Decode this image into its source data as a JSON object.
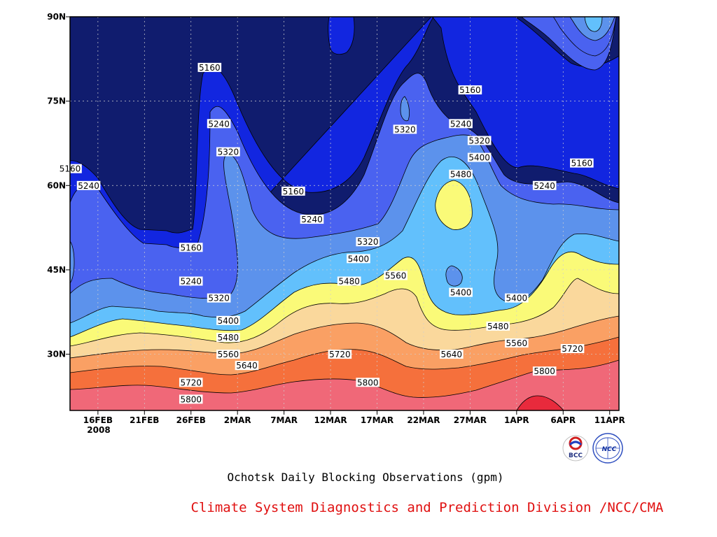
{
  "chart_data": {
    "type": "contour",
    "title": "Ochotsk Daily Blocking Observations (gpm)",
    "x_tick_labels": [
      "16FEB",
      "21FEB",
      "26FEB",
      "2MAR",
      "7MAR",
      "12MAR",
      "17MAR",
      "22MAR",
      "27MAR",
      "1APR",
      "6APR",
      "11APR"
    ],
    "x_sub_label": "2008",
    "x_range": [
      "2008-02-13",
      "2008-04-12"
    ],
    "y_tick_labels": [
      "30N",
      "45N",
      "60N",
      "75N",
      "90N"
    ],
    "y_tick_values": [
      30,
      45,
      60,
      75,
      90
    ],
    "y_range": [
      20,
      90
    ],
    "contour_levels": [
      5160,
      5240,
      5320,
      5400,
      5480,
      5560,
      5640,
      5720,
      5800
    ],
    "band_colors": [
      "#101c6e",
      "#1226e0",
      "#4a62f0",
      "#5c92ec",
      "#62c0fc",
      "#fafa78",
      "#fad89c",
      "#faa064",
      "#f5703c",
      "#f06878",
      "#e82a3c"
    ],
    "grid": true,
    "labels": [
      {
        "value": "5160",
        "date": "2008-02-13",
        "lat": 63
      },
      {
        "value": "5240",
        "date": "2008-02-15",
        "lat": 60
      },
      {
        "value": "5160",
        "date": "2008-02-28",
        "lat": 81
      },
      {
        "value": "5240",
        "date": "2008-02-29",
        "lat": 71
      },
      {
        "value": "5320",
        "date": "2008-03-01",
        "lat": 66
      },
      {
        "value": "5160",
        "date": "2008-02-26",
        "lat": 49
      },
      {
        "value": "5240",
        "date": "2008-02-26",
        "lat": 43
      },
      {
        "value": "5320",
        "date": "2008-02-29",
        "lat": 40
      },
      {
        "value": "5400",
        "date": "2008-03-01",
        "lat": 36
      },
      {
        "value": "5480",
        "date": "2008-03-01",
        "lat": 33
      },
      {
        "value": "5560",
        "date": "2008-03-01",
        "lat": 30
      },
      {
        "value": "5640",
        "date": "2008-03-03",
        "lat": 28
      },
      {
        "value": "5720",
        "date": "2008-02-26",
        "lat": 25
      },
      {
        "value": "5800",
        "date": "2008-02-26",
        "lat": 22
      },
      {
        "value": "5160",
        "date": "2008-03-08",
        "lat": 59
      },
      {
        "value": "5240",
        "date": "2008-03-10",
        "lat": 54
      },
      {
        "value": "5320",
        "date": "2008-03-16",
        "lat": 50
      },
      {
        "value": "5400",
        "date": "2008-03-15",
        "lat": 47
      },
      {
        "value": "5480",
        "date": "2008-03-14",
        "lat": 43
      },
      {
        "value": "5560",
        "date": "2008-03-19",
        "lat": 44
      },
      {
        "value": "5720",
        "date": "2008-03-13",
        "lat": 30
      },
      {
        "value": "5800",
        "date": "2008-03-16",
        "lat": 25
      },
      {
        "value": "5320",
        "date": "2008-03-20",
        "lat": 70
      },
      {
        "value": "5160",
        "date": "2008-03-27",
        "lat": 77
      },
      {
        "value": "5240",
        "date": "2008-03-26",
        "lat": 71
      },
      {
        "value": "5320",
        "date": "2008-03-28",
        "lat": 68
      },
      {
        "value": "5400",
        "date": "2008-03-28",
        "lat": 65
      },
      {
        "value": "5480",
        "date": "2008-03-26",
        "lat": 62
      },
      {
        "value": "5400",
        "date": "2008-03-26",
        "lat": 41
      },
      {
        "value": "5480",
        "date": "2008-03-30",
        "lat": 35
      },
      {
        "value": "5560",
        "date": "2008-04-01",
        "lat": 32
      },
      {
        "value": "5640",
        "date": "2008-03-25",
        "lat": 30
      },
      {
        "value": "5400",
        "date": "2008-04-01",
        "lat": 40
      },
      {
        "value": "5240",
        "date": "2008-04-04",
        "lat": 60
      },
      {
        "value": "5160",
        "date": "2008-04-08",
        "lat": 64
      },
      {
        "value": "5720",
        "date": "2008-04-07",
        "lat": 31
      },
      {
        "value": "5800",
        "date": "2008-04-04",
        "lat": 27
      }
    ]
  },
  "credit": "Climate System Diagnostics and Prediction Division /NCC/CMA",
  "credit_color": "#e01010",
  "logos": [
    {
      "name": "bcc-logo",
      "text": "BCC"
    },
    {
      "name": "ncc-logo",
      "text": "NCC"
    }
  ]
}
